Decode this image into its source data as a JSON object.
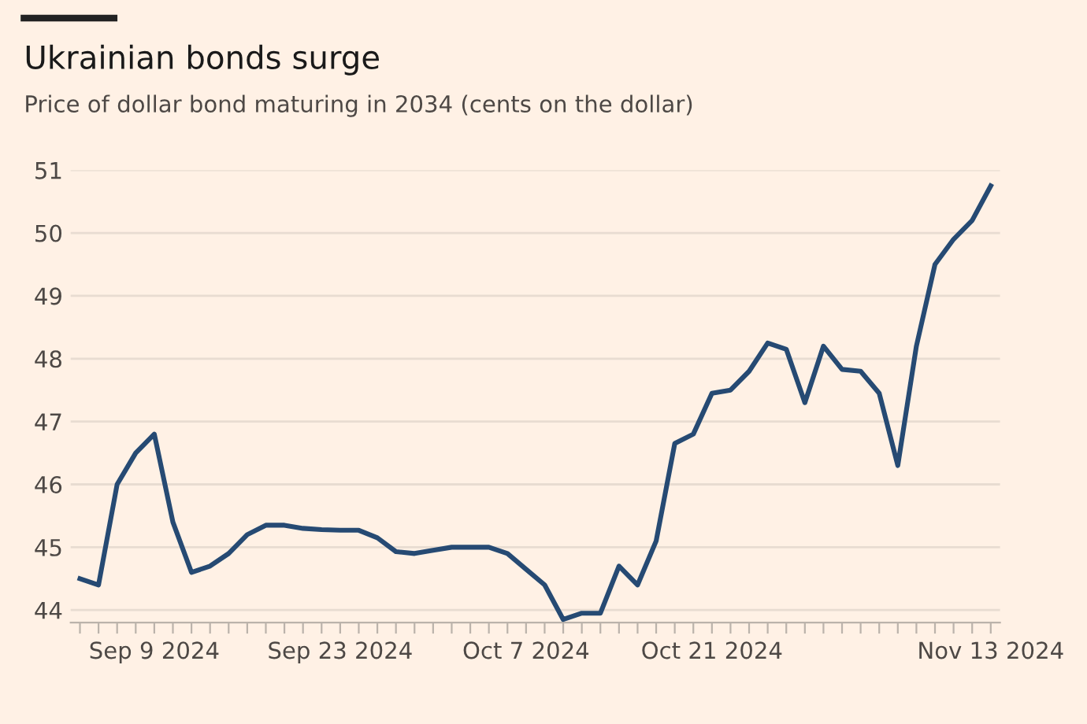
{
  "chart_data": {
    "type": "line",
    "title": "Ukrainian bonds surge",
    "subtitle": "Price of dollar bond maturing in 2034 (cents on the dollar)",
    "categories": [
      null,
      null,
      null,
      null,
      "Sep 9 2024",
      null,
      null,
      null,
      null,
      null,
      null,
      null,
      null,
      null,
      "Sep 23 2024",
      null,
      null,
      null,
      null,
      null,
      null,
      null,
      null,
      null,
      "Oct 7 2024",
      null,
      null,
      null,
      null,
      null,
      null,
      null,
      null,
      null,
      "Oct 21 2024",
      null,
      null,
      null,
      null,
      null,
      null,
      null,
      null,
      null,
      null,
      null,
      null,
      null,
      null,
      "Nov 13 2024"
    ],
    "series": [
      {
        "color": "#264a73",
        "values": [
          44.5,
          44.4,
          46.0,
          46.5,
          46.8,
          45.4,
          44.6,
          44.7,
          44.9,
          45.2,
          45.35,
          45.35,
          45.3,
          45.28,
          45.27,
          45.27,
          45.15,
          44.93,
          44.9,
          44.95,
          45.0,
          45.0,
          45.0,
          44.9,
          44.65,
          44.4,
          43.85,
          43.95,
          43.95,
          44.7,
          44.4,
          45.1,
          46.65,
          46.8,
          47.45,
          47.5,
          47.8,
          48.25,
          48.15,
          47.3,
          48.2,
          47.83,
          47.8,
          47.45,
          46.3,
          48.2,
          49.5,
          49.9,
          50.2,
          50.75
        ]
      }
    ],
    "ylim": [
      43.8,
      51
    ],
    "yticks": [
      44,
      45,
      46,
      47,
      48,
      49,
      50,
      51
    ],
    "grid": "y",
    "marker": "none",
    "line_style": "solid"
  }
}
